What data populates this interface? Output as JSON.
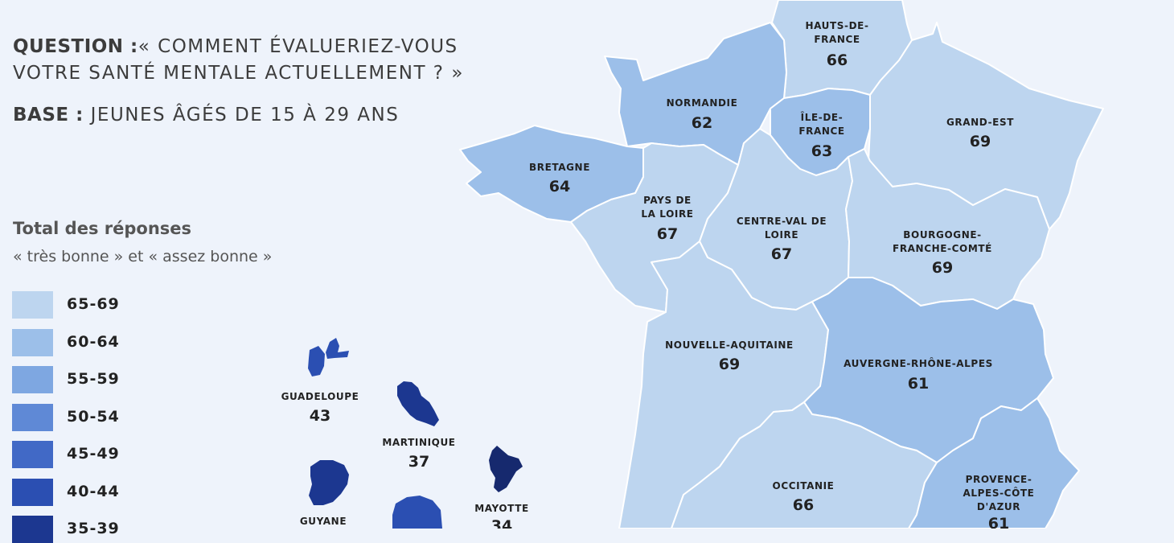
{
  "header": {
    "question_label": "QUESTION :",
    "question_line1": "« COMMENT ÉVALUERIEZ-VOUS",
    "question_line2": "VOTRE SANTÉ MENTALE ACTUELLEMENT ? »",
    "base_label": "BASE :",
    "base_text": "JEUNES ÂGÉS DE 15 À 29 ANS"
  },
  "legend": {
    "title": "Total des réponses",
    "subtitle": "« très bonne » et « assez bonne »",
    "items": [
      {
        "label": "65-69",
        "color": "#bdd5ef"
      },
      {
        "label": "60-64",
        "color": "#9cbfe9"
      },
      {
        "label": "55-59",
        "color": "#7ea7e1"
      },
      {
        "label": "50-54",
        "color": "#5f89d6"
      },
      {
        "label": "45-49",
        "color": "#4169c6"
      },
      {
        "label": "40-44",
        "color": "#2b4fb2"
      },
      {
        "label": "35-39",
        "color": "#1c3790"
      }
    ]
  },
  "regions": {
    "hauts_de_france": {
      "name1": "HAUTS-DE-",
      "name2": "FRANCE",
      "value": "66",
      "color": "#bdd5ef"
    },
    "normandie": {
      "name1": "NORMANDIE",
      "value": "62",
      "color": "#9cbfe9"
    },
    "ile_de_france": {
      "name1": "ÎLE-DE-",
      "name2": "FRANCE",
      "value": "63",
      "color": "#9cbfe9"
    },
    "grand_est": {
      "name1": "GRAND-EST",
      "value": "69",
      "color": "#bdd5ef"
    },
    "bretagne": {
      "name1": "BRETAGNE",
      "value": "64",
      "color": "#9cbfe9"
    },
    "pays_de_la_loire": {
      "name1": "PAYS DE",
      "name2": "LA LOIRE",
      "value": "67",
      "color": "#bdd5ef"
    },
    "centre_val_de_loire": {
      "name1": "CENTRE-VAL DE",
      "name2": "LOIRE",
      "value": "67",
      "color": "#bdd5ef"
    },
    "bourgogne_franche_comte": {
      "name1": "BOURGOGNE-",
      "name2": "FRANCHE-COMTÉ",
      "value": "69",
      "color": "#bdd5ef"
    },
    "nouvelle_aquitaine": {
      "name1": "NOUVELLE-AQUITAINE",
      "value": "69",
      "color": "#bdd5ef"
    },
    "auvergne_rhone_alpes": {
      "name1": "AUVERGNE-RHÔNE-ALPES",
      "value": "61",
      "color": "#9cbfe9"
    },
    "occitanie": {
      "name1": "OCCITANIE",
      "value": "66",
      "color": "#bdd5ef"
    },
    "paca": {
      "name1": "PROVENCE-",
      "name2": "ALPES-CÔTE",
      "name3": "D'AZUR",
      "value": "61",
      "color": "#9cbfe9"
    },
    "guadeloupe": {
      "name1": "GUADELOUPE",
      "value": "43",
      "color": "#2b4fb2"
    },
    "martinique": {
      "name1": "MARTINIQUE",
      "value": "37",
      "color": "#1c3790"
    },
    "mayotte": {
      "name1": "MAYOTTE",
      "value": "34",
      "color": "#16296e"
    },
    "guyane": {
      "name1": "GUYANE",
      "color": "#1c3790"
    },
    "reunion": {
      "color": "#2b4fb2"
    }
  }
}
